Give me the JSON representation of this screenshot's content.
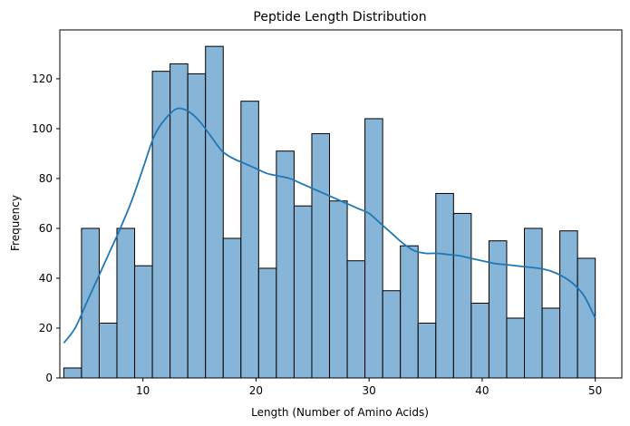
{
  "chart_data": {
    "type": "bar",
    "title": "Peptide Length Distribution",
    "xlabel": "Length (Number of Amino Acids)",
    "ylabel": "Frequency",
    "xlim": [
      2.65,
      52.35
    ],
    "ylim": [
      0,
      139.6
    ],
    "xticks": [
      10,
      20,
      30,
      40,
      50
    ],
    "yticks": [
      0,
      20,
      40,
      60,
      80,
      100,
      120
    ],
    "bin_edges": [
      3.0,
      4.5667,
      6.1333,
      7.7,
      9.2667,
      10.8333,
      12.4,
      13.9667,
      15.5333,
      17.1,
      18.6667,
      20.2333,
      21.8,
      23.3667,
      24.9333,
      26.5,
      28.0667,
      29.6333,
      31.2,
      32.7667,
      34.3333,
      35.9,
      37.4667,
      39.0333,
      40.6,
      42.1667,
      43.7333,
      45.3,
      46.8667,
      48.4333,
      50.0
    ],
    "counts": [
      4,
      60,
      22,
      60,
      45,
      123,
      126,
      122,
      133,
      56,
      111,
      44,
      91,
      69,
      98,
      71,
      47,
      104,
      35,
      53,
      22,
      74,
      66,
      30,
      55,
      24,
      60,
      28,
      59,
      48
    ],
    "kde": {
      "x": [
        3,
        4,
        5,
        6,
        7,
        8,
        9,
        10,
        11,
        12,
        13,
        14,
        15,
        16,
        17,
        18,
        19,
        20,
        21,
        22,
        23,
        24,
        25,
        26,
        27,
        28,
        29,
        30,
        31,
        32,
        33,
        34,
        35,
        36,
        37,
        38,
        39,
        40,
        41,
        42,
        43,
        44,
        45,
        46,
        47,
        48,
        49,
        50
      ],
      "y": [
        14,
        20,
        30,
        40,
        50,
        60,
        71,
        84,
        97,
        104,
        108,
        107,
        103,
        97,
        91,
        88,
        86,
        84,
        82,
        81,
        80,
        78,
        76,
        74,
        72,
        70,
        68,
        66,
        62,
        58,
        54,
        51,
        50,
        50,
        49.5,
        49,
        48,
        47,
        46,
        45.5,
        45,
        44.5,
        44,
        43,
        41,
        38,
        33,
        24
      ]
    },
    "bar_color": "#87b5d7",
    "bar_edge_color": "#000000",
    "line_color": "#1f77b4",
    "grid": false,
    "legend": "none"
  }
}
